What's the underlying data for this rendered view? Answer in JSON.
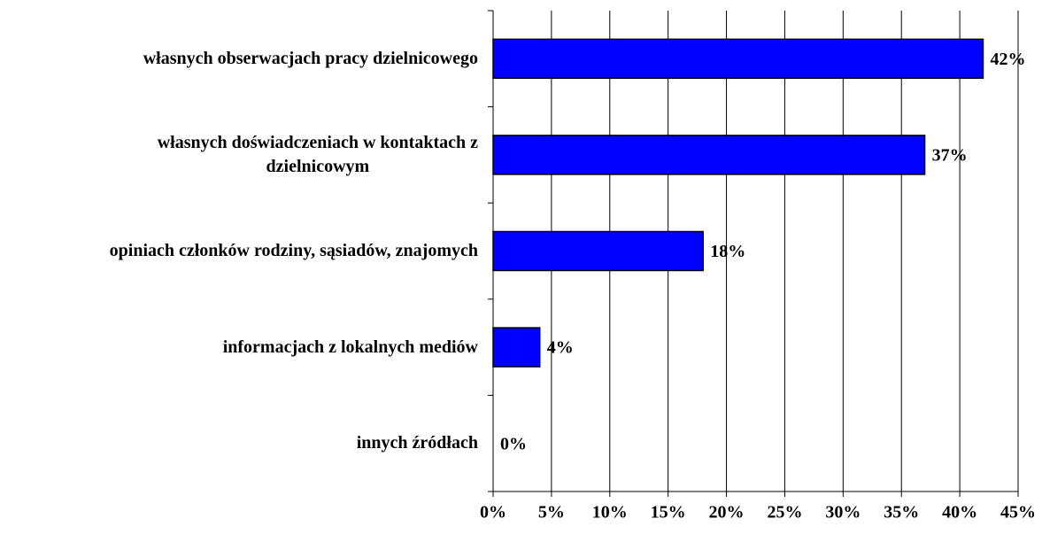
{
  "chart_data": {
    "type": "bar",
    "orientation": "horizontal",
    "categories": [
      "własnych obserwacjach pracy dzielnicowego",
      "własnych doświadczeniach w kontaktach z\ndzielnicowym",
      "opiniach członków rodziny, sąsiadów, znajomych",
      "informacjach z lokalnych mediów",
      "innych źródłach"
    ],
    "values": [
      42,
      37,
      18,
      4,
      0
    ],
    "value_labels": [
      "42%",
      "37%",
      "18%",
      "4%",
      "0%"
    ],
    "color": "#0000ff",
    "xlim": [
      0,
      45
    ],
    "xticks": [
      {
        "value": 0,
        "label": "0%"
      },
      {
        "value": 5,
        "label": "5%"
      },
      {
        "value": 10,
        "label": "10%"
      },
      {
        "value": 15,
        "label": "15%"
      },
      {
        "value": 20,
        "label": "20%"
      },
      {
        "value": 25,
        "label": "25%"
      },
      {
        "value": 30,
        "label": "30%"
      },
      {
        "value": 35,
        "label": "35%"
      },
      {
        "value": 40,
        "label": "40%"
      },
      {
        "value": 45,
        "label": "45%"
      }
    ],
    "grid": true
  }
}
